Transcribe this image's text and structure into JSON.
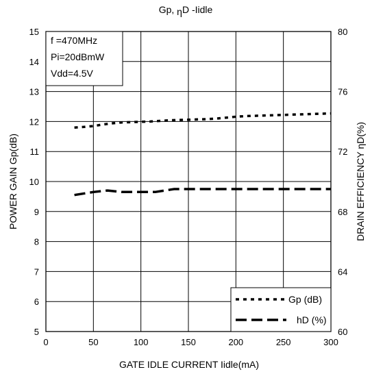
{
  "chart_data": {
    "type": "line",
    "title": "Gp, ηD -Iidle",
    "xlabel": "GATE IDLE CURRENT Iidle(mA)",
    "ylabel_left": "POWER GAIN Gp(dB)",
    "ylabel_right": "DRAIN EFFICIENCY ηD(%)",
    "xlim": [
      0,
      300
    ],
    "ylim_left": [
      5,
      15
    ],
    "ylim_right": [
      60,
      80
    ],
    "x_ticks": [
      "0",
      "50",
      "100",
      "150",
      "200",
      "250",
      "300"
    ],
    "y_left_ticks": [
      "5",
      "6",
      "7",
      "8",
      "9",
      "10",
      "11",
      "12",
      "13",
      "14",
      "15"
    ],
    "y_right_ticks": [
      "60",
      "64",
      "68",
      "72",
      "76",
      "80"
    ],
    "grid": true,
    "annotation": [
      "f =470MHz",
      "Pi=20dBmW",
      "Vdd=4.5V"
    ],
    "legend_position": "bottom-right",
    "series": [
      {
        "name": "Gp (dB)",
        "axis": "left",
        "style": "dotted",
        "x": [
          30,
          40,
          50,
          60,
          70,
          80,
          90,
          100,
          110,
          120,
          130,
          140,
          150,
          160,
          170,
          180,
          190,
          200,
          210,
          220,
          230,
          240,
          250,
          260,
          270,
          280,
          290,
          300
        ],
        "y": [
          11.8,
          11.82,
          11.85,
          11.9,
          11.94,
          11.97,
          11.98,
          11.99,
          12.0,
          12.02,
          12.04,
          12.05,
          12.06,
          12.07,
          12.08,
          12.1,
          12.13,
          12.16,
          12.18,
          12.19,
          12.2,
          12.21,
          12.22,
          12.23,
          12.24,
          12.25,
          12.26,
          12.27
        ]
      },
      {
        "name": "hD (%)",
        "axis": "right",
        "style": "dashed",
        "x": [
          30,
          50,
          65,
          80,
          100,
          115,
          135,
          160,
          200,
          250,
          300
        ],
        "y": [
          69.1,
          69.3,
          69.4,
          69.3,
          69.3,
          69.3,
          69.5,
          69.5,
          69.5,
          69.5,
          69.5
        ]
      }
    ]
  }
}
